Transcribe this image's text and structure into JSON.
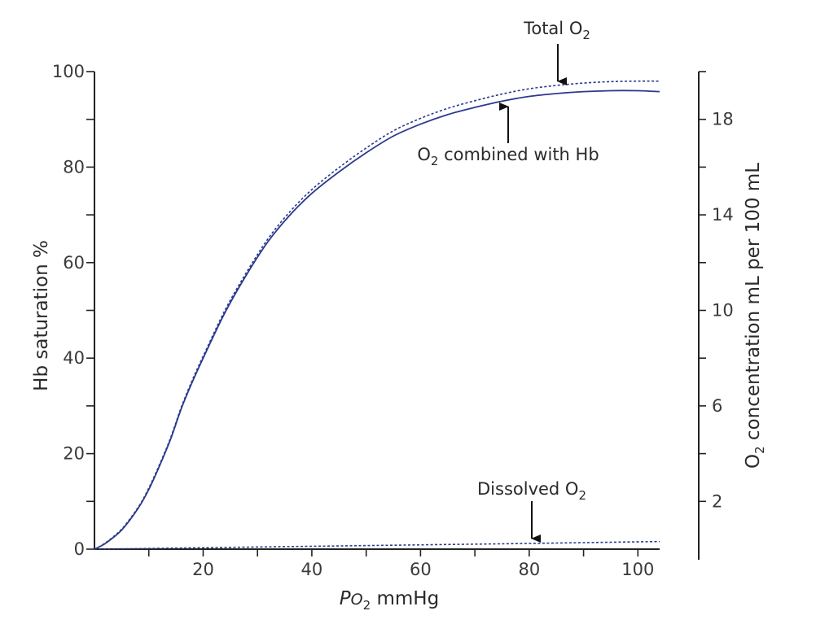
{
  "chart_data": {
    "type": "line",
    "xlabel": {
      "main": "P",
      "sub_main": "O",
      "subscript": "2",
      "unit": " mmHg"
    },
    "ylabel": "Hb saturation %",
    "y2label": {
      "main": "O",
      "subscript": "2",
      "rest": " concentration mL per 100 mL"
    },
    "xlim": [
      0,
      104
    ],
    "ylim": [
      0,
      100
    ],
    "y2lim": [
      0,
      20
    ],
    "x_ticks": [
      {
        "value": 20,
        "label": "20"
      },
      {
        "value": 40,
        "label": "40"
      },
      {
        "value": 60,
        "label": "60"
      },
      {
        "value": 80,
        "label": "80"
      },
      {
        "value": 100,
        "label": "100"
      }
    ],
    "x_minor_ticks": [
      10,
      30,
      50,
      70,
      90
    ],
    "y_ticks": [
      {
        "value": 0,
        "label": "0"
      },
      {
        "value": 20,
        "label": "20"
      },
      {
        "value": 40,
        "label": "40"
      },
      {
        "value": 60,
        "label": "60"
      },
      {
        "value": 80,
        "label": "80"
      },
      {
        "value": 100,
        "label": "100"
      }
    ],
    "y_minor_ticks": [
      10,
      30,
      50,
      70,
      90
    ],
    "y2_ticks": [
      {
        "value": 2,
        "label": "2"
      },
      {
        "value": 6,
        "label": "6"
      },
      {
        "value": 10,
        "label": "10"
      },
      {
        "value": 14,
        "label": "14"
      },
      {
        "value": 18,
        "label": "18"
      }
    ],
    "y2_minor_ticks": [
      4,
      8,
      12,
      16,
      20
    ],
    "series": [
      {
        "style": "solid",
        "color": "#2b3a8c",
        "x": [
          0,
          2,
          5,
          8,
          10,
          12,
          14,
          16,
          18,
          20,
          24,
          28,
          32,
          36,
          40,
          45,
          50,
          55,
          60,
          65,
          70,
          75,
          80,
          85,
          90,
          95,
          100,
          104
        ],
        "y": [
          0,
          1.2,
          4,
          8.5,
          12.5,
          17.5,
          23,
          29.5,
          35,
          40,
          49.5,
          57.5,
          64.5,
          70,
          74.5,
          79,
          83,
          86.5,
          89,
          91,
          92.5,
          93.8,
          94.8,
          95.4,
          95.8,
          96,
          96,
          95.8
        ]
      },
      {
        "style": "dotted",
        "color": "#2b3a8c",
        "x": [
          0,
          2,
          5,
          8,
          10,
          12,
          14,
          16,
          18,
          20,
          24,
          28,
          32,
          36,
          40,
          45,
          50,
          55,
          60,
          65,
          70,
          75,
          80,
          85,
          90,
          95,
          100,
          104
        ],
        "y": [
          0,
          1.3,
          4.2,
          8.7,
          12.8,
          17.8,
          23.3,
          29.8,
          35.4,
          40.4,
          50,
          58,
          65.1,
          70.7,
          75.3,
          79.9,
          84,
          87.6,
          90.2,
          92.3,
          93.9,
          95.3,
          96.4,
          97.1,
          97.6,
          97.9,
          98,
          98
        ]
      },
      {
        "style": "dotted",
        "color": "#2b3a8c",
        "x": [
          0,
          20,
          40,
          60,
          80,
          104
        ],
        "y": [
          0,
          0.3,
          0.6,
          0.9,
          1.2,
          1.6
        ]
      }
    ],
    "annotations": [
      {
        "main": "Total O",
        "subscript": "2",
        "arrow": "down"
      },
      {
        "main": "O",
        "subscript": "2",
        "rest": " combined with Hb",
        "arrow": "up"
      },
      {
        "main": "Dissolved O",
        "subscript": "2",
        "arrow": "down"
      }
    ]
  }
}
